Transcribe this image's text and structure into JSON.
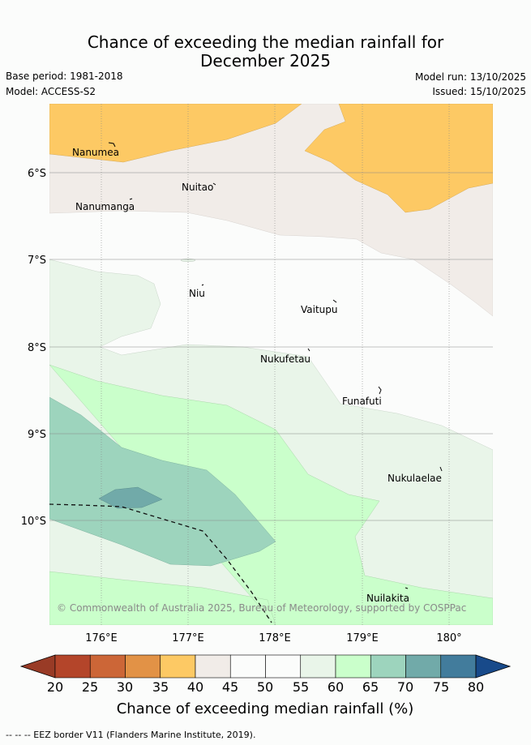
{
  "header": {
    "title_line1": "Chance of exceeding the median rainfall for",
    "title_line2": "December 2025",
    "base_period": "Base period: 1981-2018",
    "model": "Model: ACCESS-S2",
    "model_run": "Model run: 13/10/2025",
    "issued": "Issued: 15/10/2025"
  },
  "map": {
    "lat_labels": [
      "6°S",
      "7°S",
      "8°S",
      "9°S",
      "10°S"
    ],
    "lon_labels": [
      "176°E",
      "177°E",
      "178°E",
      "179°E",
      "180°"
    ],
    "places": [
      {
        "name": "Nanumea"
      },
      {
        "name": "Nuitao"
      },
      {
        "name": "Nanumanga"
      },
      {
        "name": "Niu"
      },
      {
        "name": "Vaitupu"
      },
      {
        "name": "Nukufetau"
      },
      {
        "name": "Funafuti"
      },
      {
        "name": "Nukulaelae"
      },
      {
        "name": "Nuilakita"
      }
    ],
    "copyright": "© Commonwealth of Australia 2025, Bureau of Meteorology, supported by COSPPac"
  },
  "legend": {
    "title": "Chance of exceeding median rainfall (%)",
    "ticks": [
      "20",
      "25",
      "30",
      "35",
      "40",
      "45",
      "50",
      "55",
      "60",
      "65",
      "70",
      "75",
      "80"
    ],
    "colors": [
      "#b4452a",
      "#cc6637",
      "#e29246",
      "#fdc964",
      "#f1ece8",
      "#fbfcfb",
      "#fbfcfb",
      "#e9f5e9",
      "#caffcb",
      "#9dd4bd",
      "#71aaa9",
      "#427c9c"
    ],
    "low_arrow_color": "#993b26",
    "high_arrow_color": "#184a8a"
  },
  "footer": {
    "eez_note": "-- -- -- EEZ border V11 (Flanders Marine Institute, 2019)."
  }
}
